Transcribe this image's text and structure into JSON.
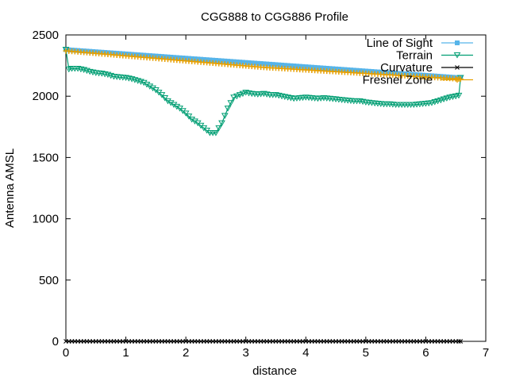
{
  "chart_data": {
    "type": "line",
    "title": "CGG888 to CGG886 Profile",
    "xlabel": "distance",
    "ylabel": "Antenna AMSL",
    "xlim": [
      0,
      7
    ],
    "ylim": [
      0,
      2500
    ],
    "xticks": [
      "0",
      "1",
      "2",
      "3",
      "4",
      "5",
      "6",
      "7"
    ],
    "yticks": [
      "0",
      "500",
      "1000",
      "1500",
      "2000",
      "2500"
    ],
    "legend_position": "top-right",
    "grid": false,
    "series": [
      {
        "name": "Line of Sight",
        "color": "#56b4e9",
        "marker": "square",
        "points": [
          [
            0,
            2380
          ],
          [
            6.58,
            2150
          ]
        ]
      },
      {
        "name": "Terrain",
        "color": "#009e73",
        "marker": "triangle-down",
        "points": [
          [
            0,
            2380
          ],
          [
            0.05,
            2220
          ],
          [
            0.1,
            2225
          ],
          [
            0.2,
            2225
          ],
          [
            0.3,
            2215
          ],
          [
            0.4,
            2200
          ],
          [
            0.5,
            2190
          ],
          [
            0.6,
            2185
          ],
          [
            0.7,
            2175
          ],
          [
            0.8,
            2160
          ],
          [
            0.9,
            2155
          ],
          [
            1.0,
            2150
          ],
          [
            1.1,
            2140
          ],
          [
            1.2,
            2125
          ],
          [
            1.3,
            2110
          ],
          [
            1.4,
            2080
          ],
          [
            1.5,
            2050
          ],
          [
            1.6,
            2010
          ],
          [
            1.7,
            1960
          ],
          [
            1.8,
            1930
          ],
          [
            1.9,
            1900
          ],
          [
            2.0,
            1860
          ],
          [
            2.1,
            1810
          ],
          [
            2.2,
            1780
          ],
          [
            2.3,
            1740
          ],
          [
            2.4,
            1700
          ],
          [
            2.5,
            1700
          ],
          [
            2.6,
            1780
          ],
          [
            2.7,
            1900
          ],
          [
            2.8,
            1990
          ],
          [
            2.9,
            2010
          ],
          [
            3.0,
            2030
          ],
          [
            3.1,
            2020
          ],
          [
            3.2,
            2015
          ],
          [
            3.3,
            2020
          ],
          [
            3.4,
            2010
          ],
          [
            3.5,
            2010
          ],
          [
            3.6,
            2000
          ],
          [
            3.7,
            1990
          ],
          [
            3.8,
            1980
          ],
          [
            3.9,
            1985
          ],
          [
            4.0,
            1990
          ],
          [
            4.1,
            1985
          ],
          [
            4.2,
            1980
          ],
          [
            4.3,
            1985
          ],
          [
            4.4,
            1980
          ],
          [
            4.5,
            1975
          ],
          [
            4.6,
            1970
          ],
          [
            4.7,
            1965
          ],
          [
            4.8,
            1960
          ],
          [
            4.9,
            1960
          ],
          [
            5.0,
            1950
          ],
          [
            5.1,
            1945
          ],
          [
            5.2,
            1940
          ],
          [
            5.3,
            1935
          ],
          [
            5.4,
            1935
          ],
          [
            5.5,
            1930
          ],
          [
            5.6,
            1930
          ],
          [
            5.7,
            1930
          ],
          [
            5.8,
            1930
          ],
          [
            5.9,
            1935
          ],
          [
            6.0,
            1940
          ],
          [
            6.1,
            1945
          ],
          [
            6.2,
            1960
          ],
          [
            6.3,
            1975
          ],
          [
            6.4,
            1990
          ],
          [
            6.5,
            2000
          ],
          [
            6.55,
            2005
          ],
          [
            6.58,
            2150
          ]
        ]
      },
      {
        "name": "Curvature",
        "color": "#000000",
        "marker": "x",
        "points": [
          [
            0,
            0
          ],
          [
            6.58,
            0
          ]
        ]
      },
      {
        "name": "Fresnel Zone",
        "color": "#e69f00",
        "marker": "plus",
        "points": [
          [
            0,
            2370
          ],
          [
            3.3,
            2235
          ],
          [
            6.58,
            2140
          ]
        ]
      }
    ]
  }
}
